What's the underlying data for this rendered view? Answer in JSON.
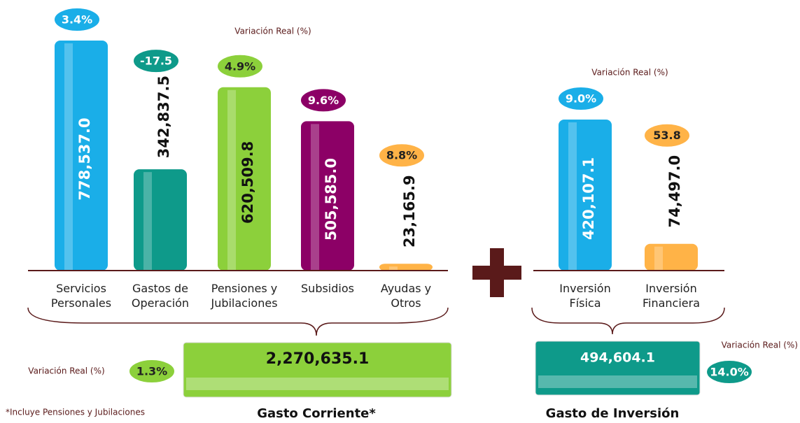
{
  "chart_data": [
    {
      "type": "bar",
      "annotation": "Variación Real (%)",
      "categories": [
        "Servicios\nPersonales",
        "Gastos de\nOperación",
        "Pensiones y\nJubilaciones",
        "Subsidios",
        "Ayudas y\nOtros"
      ],
      "values": [
        778537.0,
        342837.5,
        620509.8,
        505585.0,
        23165.9
      ],
      "value_labels": [
        "778,537.0",
        "342,837.5",
        "620,509.8",
        "505,585.0",
        "23,165.9"
      ],
      "variation_labels": [
        "3.4%",
        "-17.5",
        "4.9%",
        "9.6%",
        "8.8%"
      ],
      "colors": [
        "#1aaee8",
        "#0e9a8a",
        "#8cd03b",
        "#8c0066",
        "#ffb347"
      ]
    },
    {
      "type": "bar",
      "annotation": "Variación Real (%)",
      "categories": [
        "Inversión\nFísica",
        "Inversión\nFinanciera"
      ],
      "values": [
        420107.1,
        74497.0
      ],
      "value_labels": [
        "420,107.1",
        "74,497.0"
      ],
      "variation_labels": [
        "9.0%",
        "53.8"
      ],
      "colors": [
        "#1aaee8",
        "#ffb347"
      ]
    }
  ],
  "summaries": [
    {
      "title": "Gasto Corriente*",
      "total": 2270635.1,
      "total_label": "2,270,635.1",
      "variation_label": "1.3%",
      "annotation": "Variación Real (%)",
      "color": "#8cd03b"
    },
    {
      "title": "Gasto de Inversión",
      "total": 494604.1,
      "total_label": "494,604.1",
      "variation_label": "14.0%",
      "annotation": "Variación Real (%)",
      "color": "#0e9a8a"
    }
  ],
  "footnote": "*Incluye Pensiones y Jubilaciones"
}
